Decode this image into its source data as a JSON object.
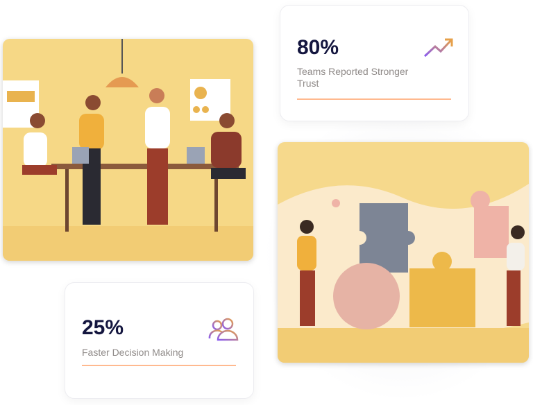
{
  "stats": [
    {
      "value": "80%",
      "label": "Teams Reported Stronger Trust",
      "icon": "trend-up-icon"
    },
    {
      "value": "25%",
      "label": "Faster Decision Making",
      "icon": "users-icon"
    }
  ],
  "colors": {
    "value": "#14163f",
    "label": "#8f8a88",
    "underline": "#ffb98f",
    "illustration_bg": "#f5d98a",
    "icon_gradient_start": "#8a5cf0",
    "icon_gradient_end": "#e6a04a"
  }
}
